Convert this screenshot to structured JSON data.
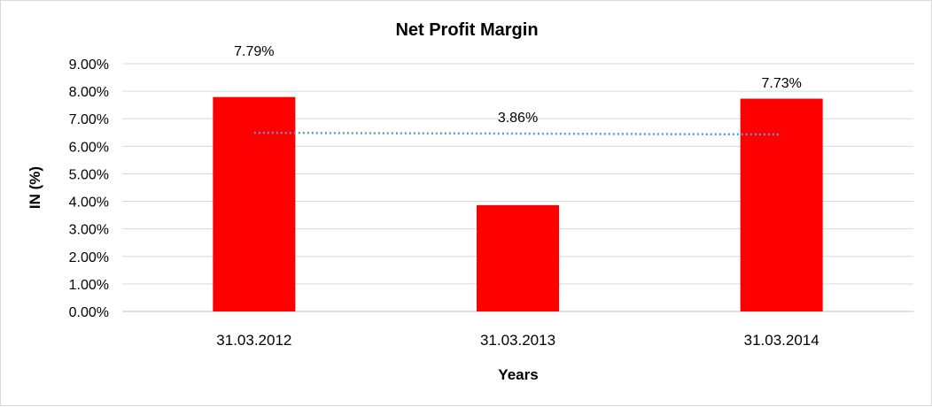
{
  "chart_data": {
    "type": "bar",
    "title": "Net Profit Margin",
    "xlabel": "Years",
    "ylabel": "IN (%)",
    "categories": [
      "31.03.2012",
      "31.03.2013",
      "31.03.2014"
    ],
    "values": [
      7.79,
      3.86,
      7.73
    ],
    "data_labels": [
      "7.79%",
      "3.86%",
      "7.73%"
    ],
    "ylim": [
      0,
      9
    ],
    "yticks": [
      "0.00%",
      "1.00%",
      "2.00%",
      "3.00%",
      "4.00%",
      "5.00%",
      "6.00%",
      "7.00%",
      "8.00%",
      "9.00%"
    ],
    "grid": true,
    "legend": "none",
    "trendline": {
      "type": "linear",
      "values": [
        6.49,
        6.46,
        6.43
      ],
      "style": "dotted"
    },
    "colors": {
      "bar": "#ff0000",
      "trendline": "#5b9bd5",
      "grid": "#d9d9d9"
    }
  }
}
